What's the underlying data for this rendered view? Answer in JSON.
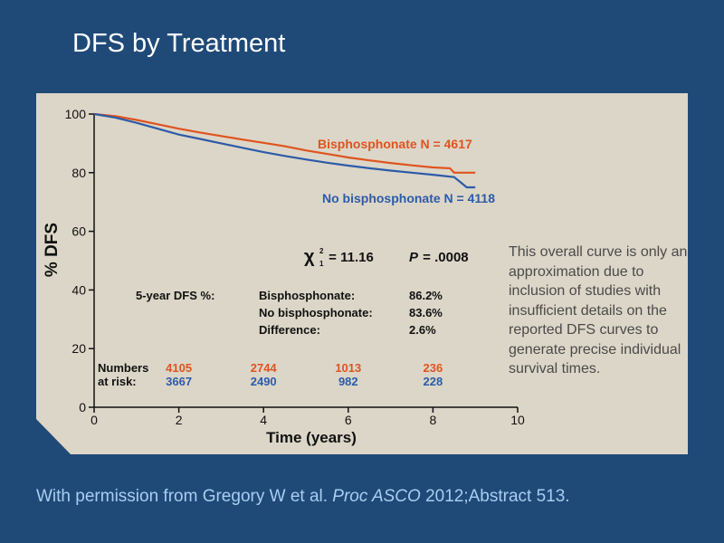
{
  "slide": {
    "title": "DFS by Treatment",
    "caption_plain_1": "With permission from Gregory W et al. ",
    "caption_italic": "Proc ASCO",
    "caption_plain_2": " 2012;Abstract 513."
  },
  "note": "This overall curve is only an approximation due to inclusion of studies with insufficient details on the reported DFS curves to generate precise individual survival times.",
  "stats": {
    "chi_symbol": "χ",
    "chi_sup": "2",
    "chi_sub": "1",
    "chi_value": " = 11.16",
    "p_label": "P",
    "p_value": " = .0008",
    "dfs_header": "5-year DFS %:",
    "rows": [
      {
        "label": "Bisphosphonate:",
        "value": "86.2%"
      },
      {
        "label": "No bisphosphonate:",
        "value": "83.6%"
      },
      {
        "label": "Difference:",
        "value": "2.6%"
      }
    ]
  },
  "risk": {
    "label_line1": "Numbers",
    "label_line2": "at risk:"
  },
  "colors": {
    "bisphosphonate": "#e0531f",
    "no_bisphosphonate": "#2c5ba8",
    "panel": "#dcd6c8",
    "background": "#1f4a78"
  },
  "chart_data": {
    "type": "line",
    "title": "",
    "xlabel": "Time (years)",
    "ylabel": "% DFS",
    "xlim": [
      0,
      10
    ],
    "ylim": [
      0,
      100
    ],
    "xticks": [
      "0",
      "2",
      "4",
      "6",
      "8",
      "10"
    ],
    "yticks": [
      "0",
      "20",
      "40",
      "60",
      "80",
      "100"
    ],
    "grid": false,
    "series": [
      {
        "name": "Bisphosphonate N = 4617",
        "x": [
          0,
          0.5,
          1,
          1.5,
          2,
          2.5,
          3,
          3.5,
          4,
          4.5,
          5,
          5.5,
          6,
          6.5,
          7,
          7.5,
          8,
          8.4,
          8.5,
          9
        ],
        "y": [
          100,
          99.3,
          98,
          96.5,
          95,
          93.7,
          92.5,
          91.3,
          90.2,
          89,
          87.6,
          86.4,
          85.2,
          84.2,
          83.3,
          82.5,
          81.8,
          81.5,
          80,
          80
        ]
      },
      {
        "name": "No bisphosphonate N = 4118",
        "x": [
          0,
          0.5,
          1,
          1.5,
          2,
          2.5,
          3,
          3.5,
          4,
          4.5,
          5,
          5.5,
          6,
          6.5,
          7,
          7.5,
          8,
          8.5,
          8.8,
          9
        ],
        "y": [
          100,
          98.8,
          97,
          95,
          93,
          91.5,
          90,
          88.5,
          87,
          85.7,
          84.5,
          83.4,
          82.4,
          81.5,
          80.7,
          80,
          79.3,
          78.5,
          75,
          75
        ]
      }
    ],
    "numbers_at_risk": {
      "x": [
        2,
        4,
        6,
        8
      ],
      "bisphosphonate": [
        "4105",
        "2744",
        "1013",
        "236"
      ],
      "no_bisphosphonate": [
        "3667",
        "2490",
        "982",
        "228"
      ]
    }
  }
}
